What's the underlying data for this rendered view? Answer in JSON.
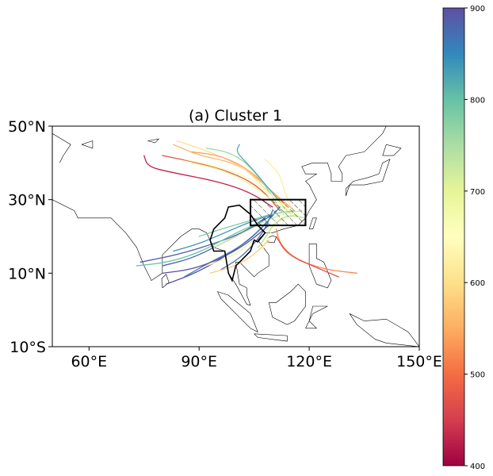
{
  "chart_data": {
    "type": "map-trajectories",
    "title": "(a) Cluster 1",
    "extent": {
      "lon": [
        50,
        150
      ],
      "lat": [
        -10,
        50
      ]
    },
    "x_ticks": [
      {
        "value": 60,
        "label": "60°E"
      },
      {
        "value": 90,
        "label": "90°E"
      },
      {
        "value": 120,
        "label": "120°E"
      },
      {
        "value": 150,
        "label": "150°E"
      }
    ],
    "y_ticks": [
      {
        "value": 50,
        "label": "50°N"
      },
      {
        "value": 30,
        "label": "30°N"
      },
      {
        "value": 10,
        "label": "10°N"
      },
      {
        "value": -10,
        "label": "10°S"
      }
    ],
    "target_box": {
      "lon": [
        104,
        119
      ],
      "lat": [
        23,
        30
      ]
    },
    "colorbar": {
      "colormap": "Spectral",
      "range": [
        400,
        900
      ],
      "ticks": [
        {
          "value": 400,
          "label": "400"
        },
        {
          "value": 500,
          "label": "500"
        },
        {
          "value": 600,
          "label": "600"
        },
        {
          "value": 700,
          "label": "700"
        },
        {
          "value": 800,
          "label": "800"
        },
        {
          "value": 900,
          "label": "900"
        }
      ]
    },
    "trajectories": [
      {
        "level": 430,
        "points": [
          [
            75,
            42
          ],
          [
            76,
            39
          ],
          [
            82,
            37.5
          ],
          [
            95,
            35
          ],
          [
            104,
            32
          ],
          [
            110,
            28
          ]
        ]
      },
      {
        "level": 480,
        "points": [
          [
            80,
            42
          ],
          [
            90,
            40
          ],
          [
            100,
            37
          ],
          [
            107,
            33
          ],
          [
            112,
            27
          ]
        ]
      },
      {
        "level": 560,
        "points": [
          [
            83,
            45
          ],
          [
            90,
            42
          ],
          [
            100,
            40
          ],
          [
            107,
            35
          ],
          [
            114,
            28
          ]
        ]
      },
      {
        "level": 600,
        "points": [
          [
            84,
            46
          ],
          [
            93,
            43
          ],
          [
            102,
            39
          ],
          [
            108,
            33
          ],
          [
            115,
            26
          ]
        ]
      },
      {
        "level": 540,
        "points": [
          [
            88,
            43
          ],
          [
            96,
            42
          ],
          [
            104,
            38
          ],
          [
            110,
            32
          ],
          [
            116,
            27
          ]
        ]
      },
      {
        "level": 760,
        "points": [
          [
            92,
            44
          ],
          [
            98,
            43
          ],
          [
            103,
            40
          ],
          [
            108,
            34
          ],
          [
            113,
            26
          ]
        ]
      },
      {
        "level": 820,
        "points": [
          [
            101,
            45
          ],
          [
            100,
            43
          ],
          [
            104,
            39
          ],
          [
            109,
            33
          ],
          [
            114,
            27
          ]
        ]
      },
      {
        "level": 620,
        "points": [
          [
            108,
            41
          ],
          [
            112,
            37
          ],
          [
            113,
            33
          ],
          [
            115,
            28
          ]
        ]
      },
      {
        "level": 660,
        "points": [
          [
            86,
            41
          ],
          [
            95,
            39
          ],
          [
            104,
            36
          ],
          [
            111,
            30
          ],
          [
            117,
            25
          ]
        ]
      },
      {
        "level": 700,
        "points": [
          [
            88,
            40
          ],
          [
            97,
            38
          ],
          [
            106,
            33
          ],
          [
            112,
            28
          ],
          [
            118,
            25
          ]
        ]
      },
      {
        "level": 880,
        "points": [
          [
            80,
            12
          ],
          [
            88,
            14
          ],
          [
            96,
            18
          ],
          [
            104,
            22
          ],
          [
            110,
            26
          ]
        ]
      },
      {
        "level": 900,
        "points": [
          [
            81,
            7
          ],
          [
            89,
            10
          ],
          [
            98,
            15
          ],
          [
            106,
            21
          ],
          [
            111,
            27
          ]
        ]
      },
      {
        "level": 890,
        "points": [
          [
            74,
            13
          ],
          [
            84,
            15
          ],
          [
            94,
            18
          ],
          [
            102,
            21
          ],
          [
            108,
            25
          ]
        ]
      },
      {
        "level": 860,
        "points": [
          [
            86,
            9
          ],
          [
            93,
            13
          ],
          [
            101,
            17
          ],
          [
            107,
            22
          ],
          [
            112,
            28
          ]
        ]
      },
      {
        "level": 800,
        "points": [
          [
            73,
            12
          ],
          [
            82,
            13
          ],
          [
            91,
            16
          ],
          [
            100,
            21
          ],
          [
            107,
            24
          ]
        ]
      },
      {
        "level": 840,
        "points": [
          [
            83,
            16
          ],
          [
            90,
            18
          ],
          [
            97,
            21
          ],
          [
            104,
            24
          ],
          [
            110,
            26
          ]
        ]
      },
      {
        "level": 780,
        "points": [
          [
            90,
            20
          ],
          [
            96,
            22
          ],
          [
            103,
            24
          ],
          [
            109,
            26
          ],
          [
            116,
            27
          ]
        ]
      },
      {
        "level": 720,
        "points": [
          [
            94,
            17
          ],
          [
            100,
            20
          ],
          [
            106,
            23
          ],
          [
            112,
            26
          ],
          [
            118,
            27
          ]
        ]
      },
      {
        "level": 690,
        "points": [
          [
            92,
            12
          ],
          [
            100,
            15
          ],
          [
            106,
            20
          ],
          [
            111,
            24
          ],
          [
            117,
            26
          ]
        ]
      },
      {
        "level": 870,
        "points": [
          [
            96,
            11
          ],
          [
            101,
            14
          ],
          [
            105,
            18
          ],
          [
            108,
            22
          ],
          [
            110,
            27
          ]
        ]
      },
      {
        "level": 650,
        "points": [
          [
            107,
            16
          ],
          [
            109,
            20
          ],
          [
            111,
            24
          ],
          [
            114,
            28
          ]
        ]
      },
      {
        "level": 580,
        "points": [
          [
            93,
            10
          ],
          [
            100,
            12
          ],
          [
            105,
            15
          ],
          [
            109,
            19
          ]
        ]
      },
      {
        "level": 520,
        "points": [
          [
            133,
            10
          ],
          [
            124,
            11
          ],
          [
            116,
            14
          ],
          [
            112,
            18
          ],
          [
            111,
            22
          ]
        ]
      },
      {
        "level": 470,
        "points": [
          [
            128,
            9
          ],
          [
            122,
            11.5
          ],
          [
            114,
            15
          ],
          [
            111,
            20
          ]
        ]
      },
      {
        "level": 740,
        "points": [
          [
            106,
            17
          ],
          [
            108,
            19.5
          ],
          [
            110,
            23
          ],
          [
            114,
            26
          ],
          [
            119,
            25
          ]
        ]
      },
      {
        "level": 900,
        "points": [
          [
            80,
            10
          ],
          [
            88,
            11
          ],
          [
            96,
            14
          ],
          [
            103,
            18
          ],
          [
            109,
            23
          ]
        ]
      }
    ]
  }
}
